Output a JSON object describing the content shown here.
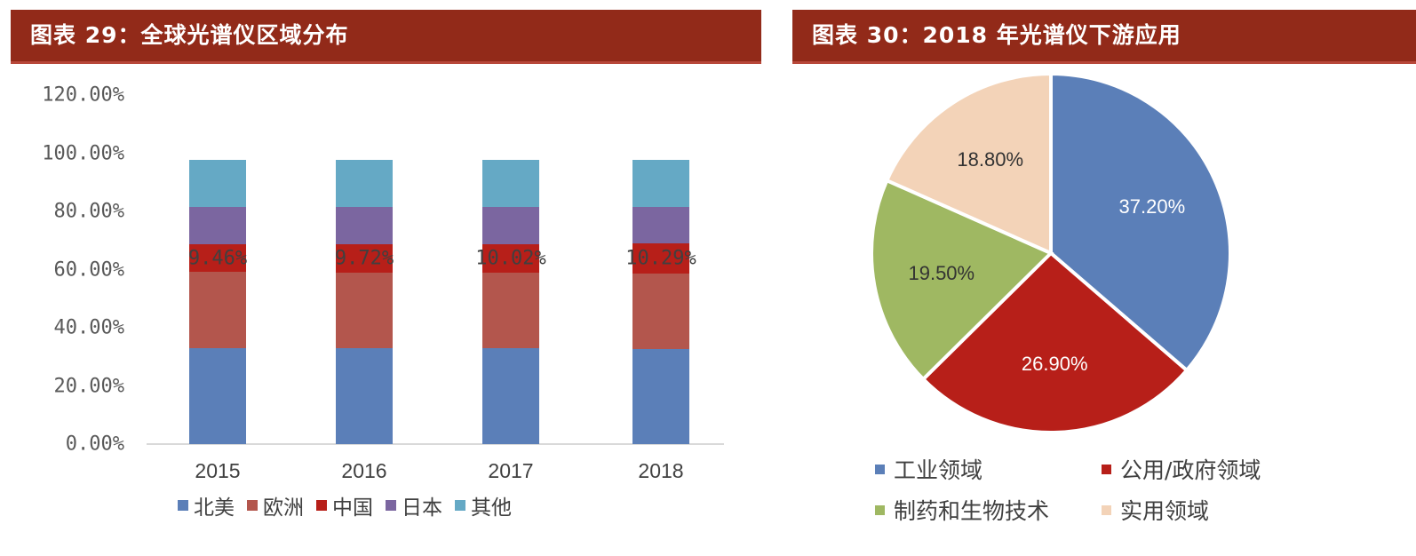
{
  "left_panel": {
    "title": "图表 29：全球光谱仪区域分布"
  },
  "right_panel": {
    "title": "图表 30：2018 年光谱仪下游应用"
  },
  "chart_data": [
    {
      "type": "bar",
      "stacked": true,
      "title": "图表 29：全球光谱仪区域分布",
      "categories": [
        "2015",
        "2016",
        "2017",
        "2018"
      ],
      "series": [
        {
          "name": "北美",
          "color": "#5b7fb8",
          "values": [
            32.9,
            32.9,
            32.9,
            32.9
          ]
        },
        {
          "name": "欧洲",
          "color": "#b3564d",
          "values": [
            25.9,
            25.9,
            25.9,
            25.9
          ]
        },
        {
          "name": "中国",
          "color": "#b71f19",
          "values": [
            9.46,
            9.72,
            10.02,
            10.29
          ]
        },
        {
          "name": "日本",
          "color": "#7b66a0",
          "values": [
            12.8,
            12.8,
            12.8,
            12.8
          ]
        },
        {
          "name": "其他",
          "color": "#65a9c5",
          "values": [
            16.1,
            16.1,
            16.1,
            16.1
          ]
        }
      ],
      "data_labels": [
        "9.46%",
        "9.72%",
        "10.02%",
        "10.29%"
      ],
      "yticks": [
        "0.00%",
        "20.00%",
        "40.00%",
        "60.00%",
        "80.00%",
        "100.00%",
        "120.00%"
      ],
      "ylim": [
        0,
        120
      ],
      "xlabel": "",
      "ylabel": "",
      "legend_position": "bottom",
      "grid": false
    },
    {
      "type": "pie",
      "title": "图表 30：2018 年光谱仪下游应用",
      "categories": [
        "工业领域",
        "公用/政府领域",
        "制药和生物技术",
        "实用领域"
      ],
      "values": [
        37.2,
        26.9,
        19.5,
        18.8
      ],
      "labels": [
        "37.20%",
        "26.90%",
        "19.50%",
        "18.80%"
      ],
      "colors": [
        "#5b7fb8",
        "#b71f19",
        "#9fb862",
        "#f3d3b8"
      ],
      "legend_position": "bottom"
    }
  ],
  "legend_left": [
    {
      "label": "北美",
      "color": "#5b7fb8"
    },
    {
      "label": "欧洲",
      "color": "#b3564d"
    },
    {
      "label": "中国",
      "color": "#b71f19"
    },
    {
      "label": "日本",
      "color": "#7b66a0"
    },
    {
      "label": "其他",
      "color": "#65a9c5"
    }
  ],
  "legend_right": [
    {
      "label": "工业领域",
      "color": "#5b7fb8"
    },
    {
      "label": "公用/政府领域",
      "color": "#b71f19"
    },
    {
      "label": "制药和生物技术",
      "color": "#9fb862"
    },
    {
      "label": "实用领域",
      "color": "#f3d3b8"
    }
  ]
}
